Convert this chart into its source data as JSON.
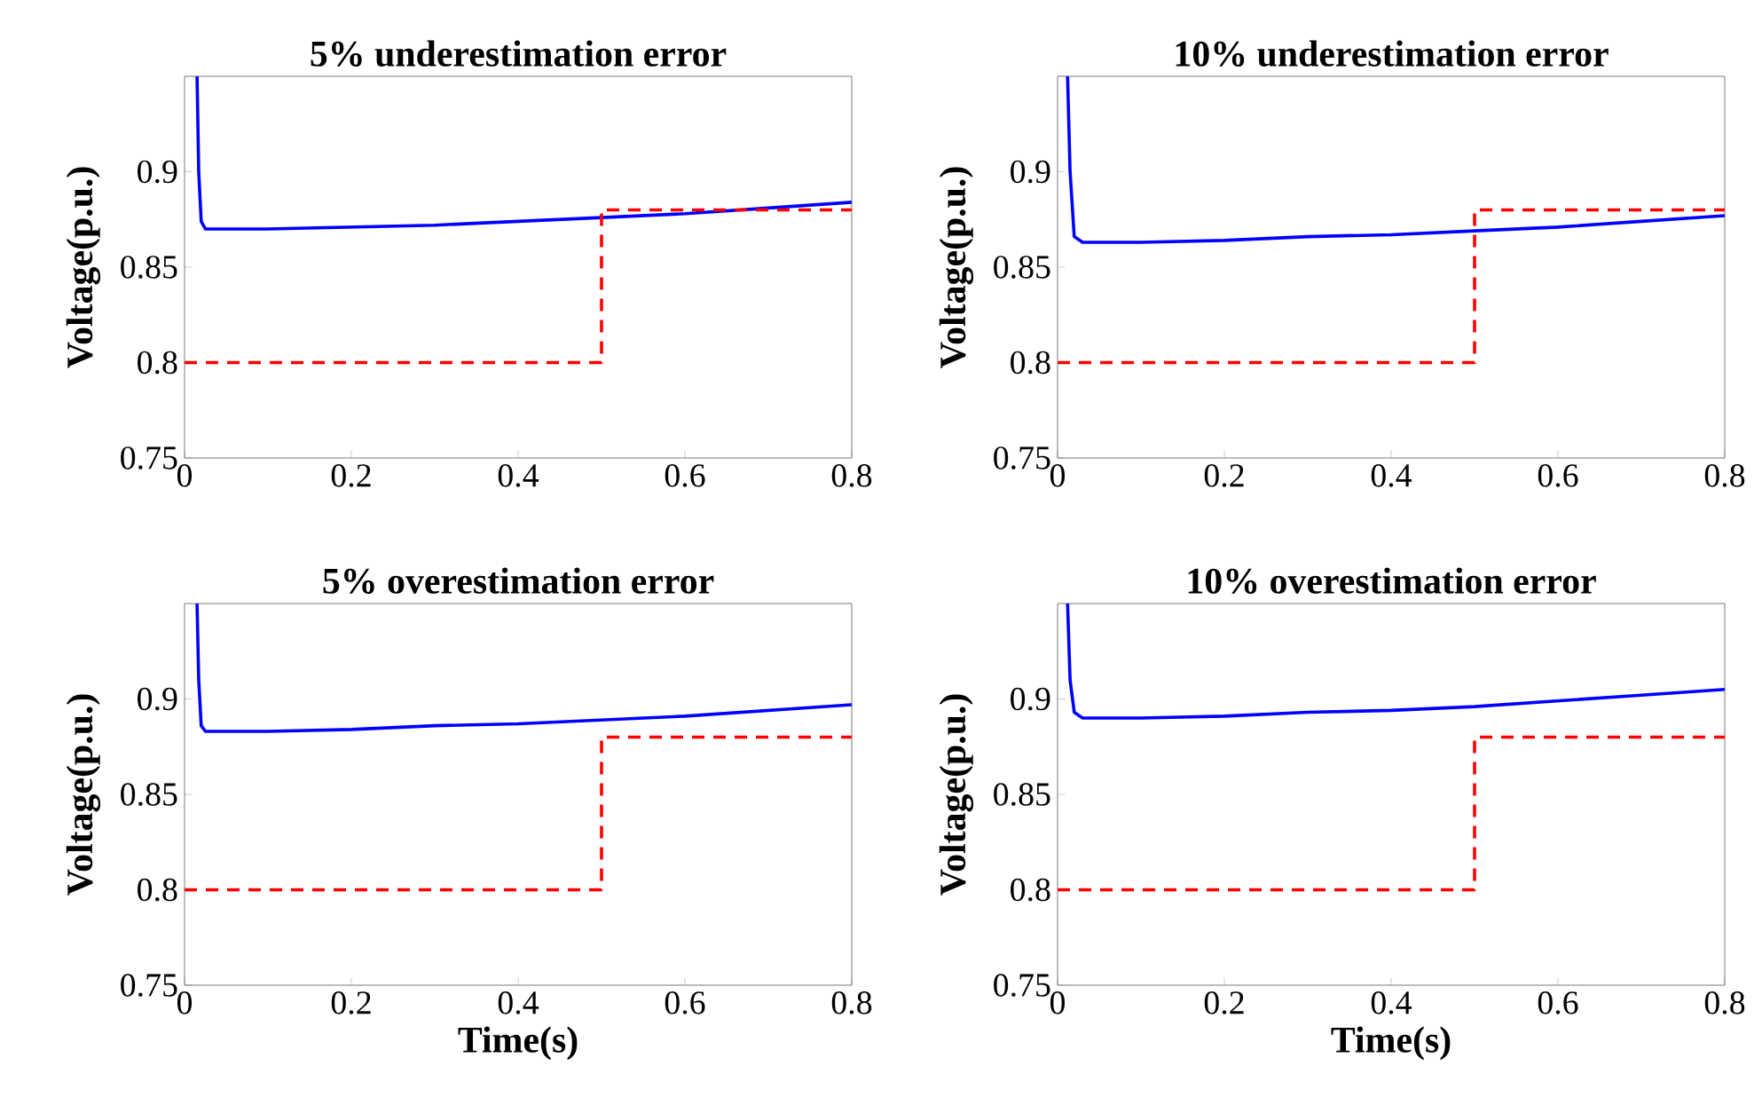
{
  "chart_data": [
    {
      "type": "line",
      "title": "5% underestimation error",
      "ylabel": "Voltage(p.u.)",
      "xlim": [
        0,
        0.8
      ],
      "ylim": [
        0.75,
        0.95
      ],
      "xticks": [
        0,
        0.2,
        0.4,
        0.6,
        0.8
      ],
      "yticks": [
        0.75,
        0.8,
        0.85,
        0.9
      ],
      "grid": false,
      "series": [
        {
          "color": "#0000ff",
          "line_style": "solid",
          "x": [
            0.015,
            0.017,
            0.02,
            0.025,
            0.1,
            0.2,
            0.3,
            0.4,
            0.5,
            0.6,
            0.7,
            0.8
          ],
          "values": [
            0.95,
            0.9,
            0.874,
            0.87,
            0.87,
            0.871,
            0.872,
            0.874,
            0.876,
            0.878,
            0.881,
            0.884
          ]
        },
        {
          "color": "#ff0000",
          "line_style": "dashed",
          "x": [
            0,
            0.5,
            0.5,
            0.8
          ],
          "values": [
            0.8,
            0.8,
            0.88,
            0.88
          ]
        }
      ]
    },
    {
      "type": "line",
      "title": "10% underestimation error",
      "ylabel": "Voltage(p.u.)",
      "xlim": [
        0,
        0.8
      ],
      "ylim": [
        0.75,
        0.95
      ],
      "xticks": [
        0,
        0.2,
        0.4,
        0.6,
        0.8
      ],
      "yticks": [
        0.75,
        0.8,
        0.85,
        0.9
      ],
      "grid": false,
      "series": [
        {
          "color": "#0000ff",
          "line_style": "solid",
          "x": [
            0.012,
            0.015,
            0.02,
            0.03,
            0.1,
            0.2,
            0.3,
            0.4,
            0.5,
            0.6,
            0.7,
            0.8
          ],
          "values": [
            0.95,
            0.9,
            0.866,
            0.863,
            0.863,
            0.864,
            0.866,
            0.867,
            0.869,
            0.871,
            0.874,
            0.877
          ]
        },
        {
          "color": "#ff0000",
          "line_style": "dashed",
          "x": [
            0,
            0.5,
            0.5,
            0.8
          ],
          "values": [
            0.8,
            0.8,
            0.88,
            0.88
          ]
        }
      ]
    },
    {
      "type": "line",
      "title": "5% overestimation error",
      "ylabel": "Voltage(p.u.)",
      "xlabel": "Time(s)",
      "xlim": [
        0,
        0.8
      ],
      "ylim": [
        0.75,
        0.95
      ],
      "xticks": [
        0,
        0.2,
        0.4,
        0.6,
        0.8
      ],
      "yticks": [
        0.75,
        0.8,
        0.85,
        0.9
      ],
      "grid": false,
      "series": [
        {
          "color": "#0000ff",
          "line_style": "solid",
          "x": [
            0.015,
            0.017,
            0.02,
            0.025,
            0.1,
            0.2,
            0.3,
            0.4,
            0.5,
            0.6,
            0.7,
            0.8
          ],
          "values": [
            0.95,
            0.91,
            0.886,
            0.883,
            0.883,
            0.884,
            0.886,
            0.887,
            0.889,
            0.891,
            0.894,
            0.897
          ]
        },
        {
          "color": "#ff0000",
          "line_style": "dashed",
          "x": [
            0,
            0.5,
            0.5,
            0.8
          ],
          "values": [
            0.8,
            0.8,
            0.88,
            0.88
          ]
        }
      ]
    },
    {
      "type": "line",
      "title": "10% overestimation error",
      "ylabel": "Voltage(p.u.)",
      "xlabel": "Time(s)",
      "xlim": [
        0,
        0.8
      ],
      "ylim": [
        0.75,
        0.95
      ],
      "xticks": [
        0,
        0.2,
        0.4,
        0.6,
        0.8
      ],
      "yticks": [
        0.75,
        0.8,
        0.85,
        0.9
      ],
      "grid": false,
      "series": [
        {
          "color": "#0000ff",
          "line_style": "solid",
          "x": [
            0.012,
            0.015,
            0.02,
            0.03,
            0.1,
            0.2,
            0.3,
            0.4,
            0.5,
            0.6,
            0.7,
            0.8
          ],
          "values": [
            0.95,
            0.91,
            0.893,
            0.89,
            0.89,
            0.891,
            0.893,
            0.894,
            0.896,
            0.899,
            0.902,
            0.905
          ]
        },
        {
          "color": "#ff0000",
          "line_style": "dashed",
          "x": [
            0,
            0.5,
            0.5,
            0.8
          ],
          "values": [
            0.8,
            0.8,
            0.88,
            0.88
          ]
        }
      ]
    }
  ]
}
